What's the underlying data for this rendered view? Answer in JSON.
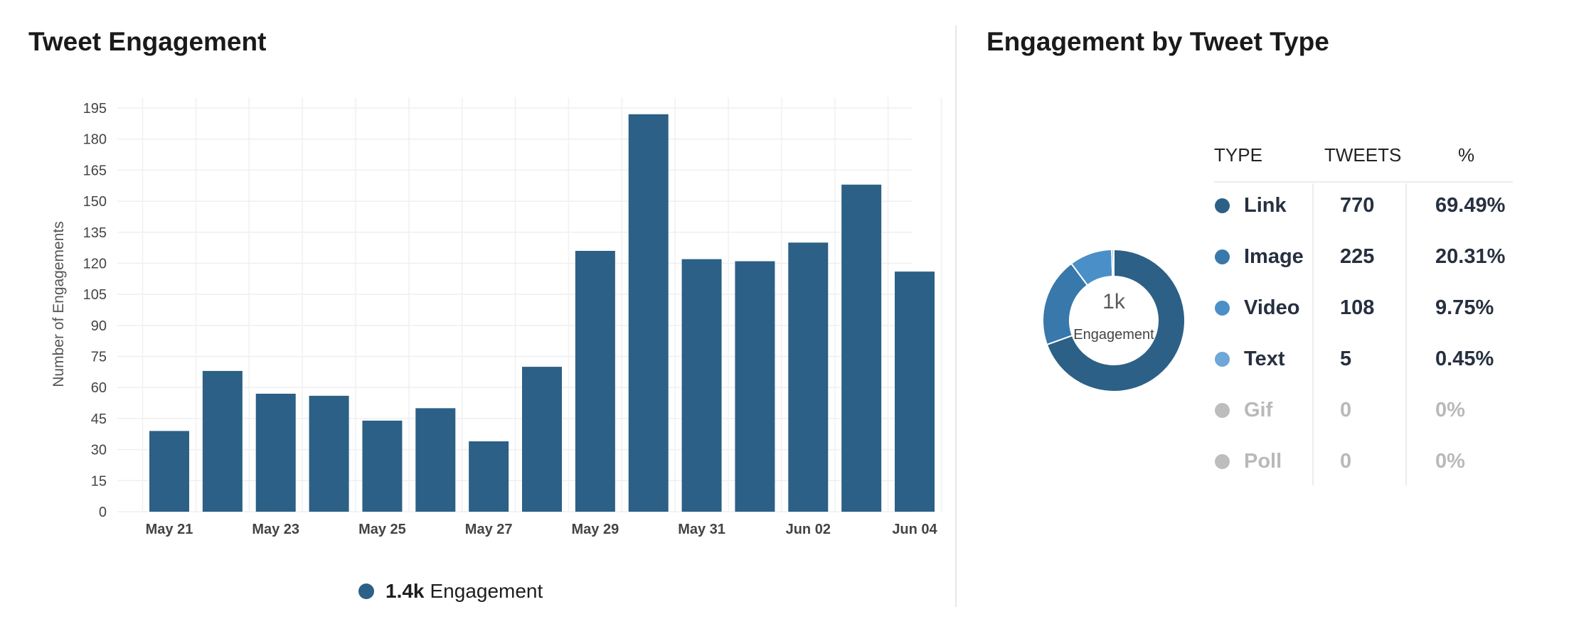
{
  "left_panel": {
    "title": "Tweet Engagement"
  },
  "right_panel": {
    "title": "Engagement by Tweet Type"
  },
  "legend": {
    "value": "1.4k",
    "label": "Engagement",
    "color": "#2c6086"
  },
  "chart_data": [
    {
      "type": "bar",
      "title": "Tweet Engagement",
      "xlabel": "",
      "ylabel": "Number of Engagements",
      "ylim": [
        0,
        195
      ],
      "yticks": [
        0,
        15,
        30,
        45,
        60,
        75,
        90,
        105,
        120,
        135,
        150,
        165,
        180,
        195
      ],
      "grid": true,
      "legend_position": "bottom",
      "categories": [
        "May 21",
        "May 22",
        "May 23",
        "May 24",
        "May 25",
        "May 26",
        "May 27",
        "May 28",
        "May 29",
        "May 30",
        "May 31",
        "Jun 01",
        "Jun 02",
        "Jun 03",
        "Jun 04"
      ],
      "x_tick_labels": [
        "May 21",
        "May 23",
        "May 25",
        "May 27",
        "May 29",
        "May 31",
        "Jun 02",
        "Jun 04"
      ],
      "series": [
        {
          "name": "Engagement",
          "color": "#2c6086",
          "values": [
            39,
            68,
            57,
            56,
            44,
            50,
            34,
            70,
            126,
            192,
            122,
            121,
            130,
            158,
            116
          ]
        }
      ]
    },
    {
      "type": "pie",
      "title": "Engagement by Tweet Type",
      "center_value": "1k",
      "center_label": "Engagement",
      "slices": [
        {
          "label": "Link",
          "value": 770,
          "percent": 69.49,
          "color": "#2c6086"
        },
        {
          "label": "Image",
          "value": 225,
          "percent": 20.31,
          "color": "#3878ab"
        },
        {
          "label": "Video",
          "value": 108,
          "percent": 9.75,
          "color": "#4a8fc8"
        },
        {
          "label": "Text",
          "value": 5,
          "percent": 0.45,
          "color": "#6fa7d8"
        }
      ]
    }
  ],
  "type_table": {
    "headers": [
      "TYPE",
      "TWEETS",
      "%"
    ],
    "rows": [
      {
        "type": "Link",
        "tweets": "770",
        "percent": "69.49%",
        "color": "#2c6086",
        "muted": false
      },
      {
        "type": "Image",
        "tweets": "225",
        "percent": "20.31%",
        "color": "#3878ab",
        "muted": false
      },
      {
        "type": "Video",
        "tweets": "108",
        "percent": "9.75%",
        "color": "#4a8fc8",
        "muted": false
      },
      {
        "type": "Text",
        "tweets": "5",
        "percent": "0.45%",
        "color": "#6fa7d8",
        "muted": false
      },
      {
        "type": "Gif",
        "tweets": "0",
        "percent": "0%",
        "color": "#bdbdbd",
        "muted": true
      },
      {
        "type": "Poll",
        "tweets": "0",
        "percent": "0%",
        "color": "#bdbdbd",
        "muted": true
      }
    ]
  }
}
